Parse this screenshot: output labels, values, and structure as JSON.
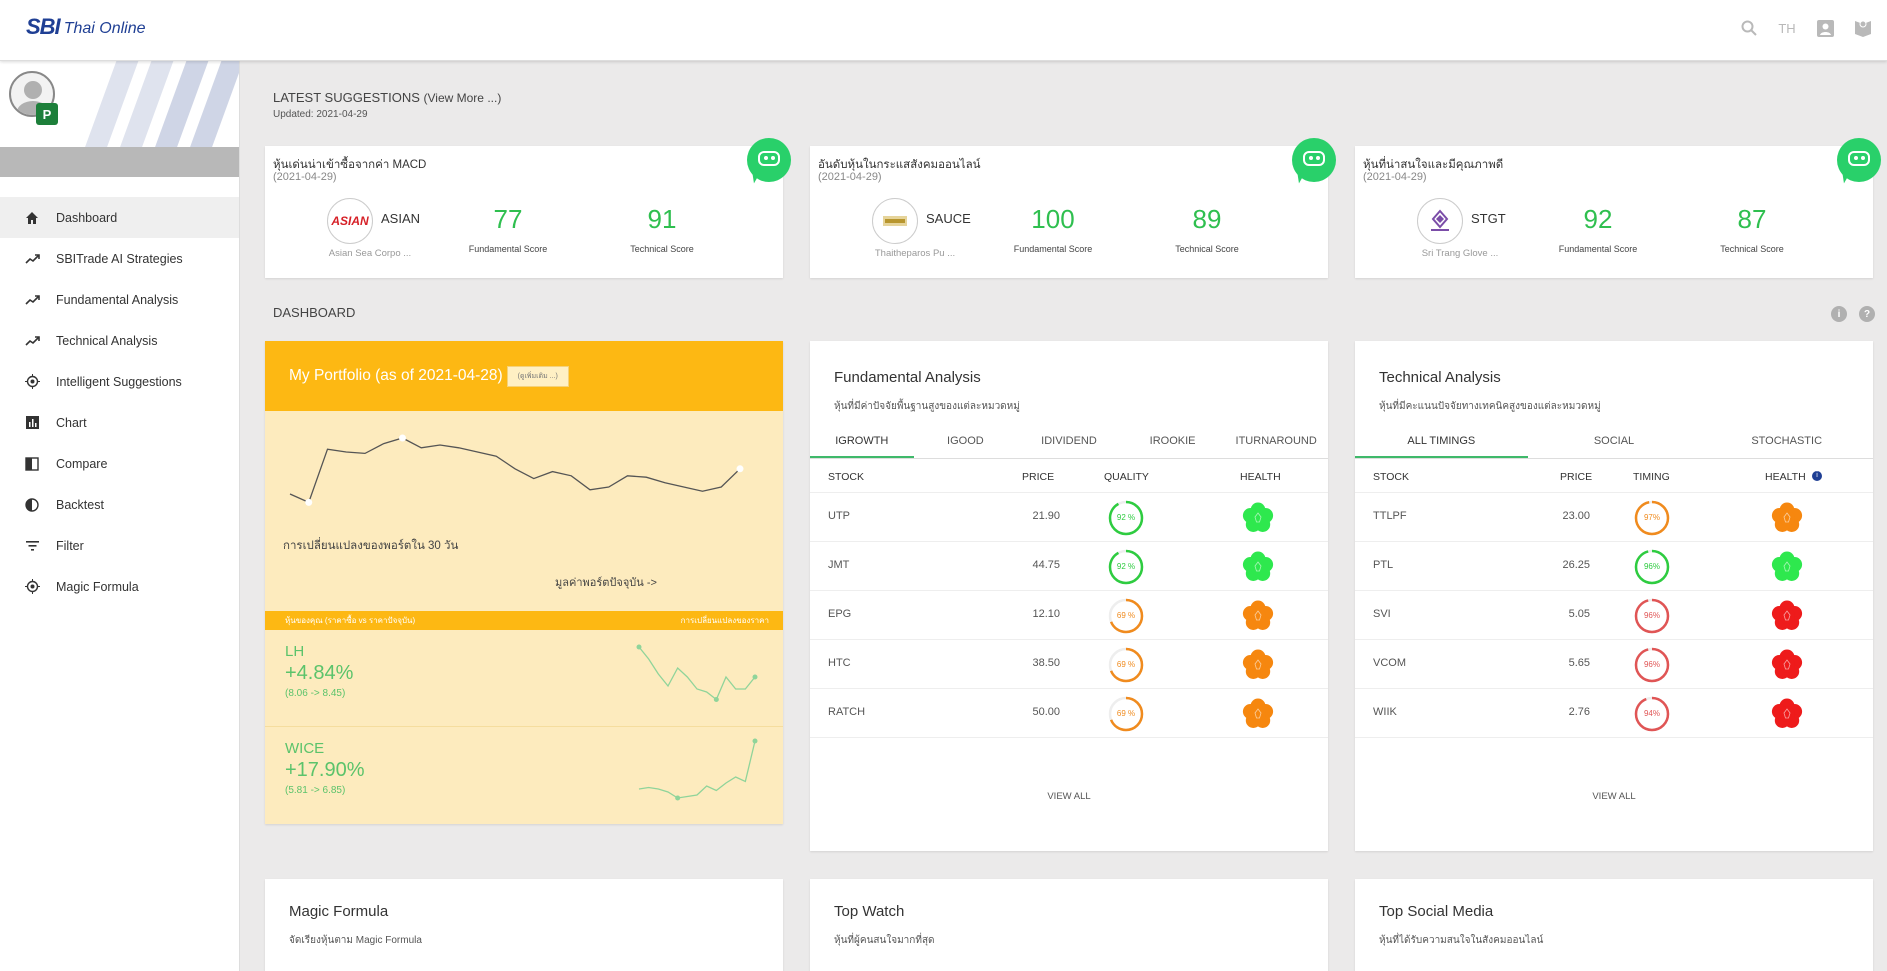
{
  "header": {
    "logo_sbi": "SBI",
    "logo_online": "Thai Online",
    "lang": "TH"
  },
  "sidebar": {
    "items": [
      {
        "label": "Dashboard",
        "icon": "home-icon"
      },
      {
        "label": "SBITrade AI Strategies",
        "icon": "trend-icon"
      },
      {
        "label": "Fundamental Analysis",
        "icon": "trend-icon"
      },
      {
        "label": "Technical Analysis",
        "icon": "trend-icon"
      },
      {
        "label": "Intelligent Suggestions",
        "icon": "target-icon"
      },
      {
        "label": "Chart",
        "icon": "bar-chart-icon"
      },
      {
        "label": "Compare",
        "icon": "compare-icon"
      },
      {
        "label": "Backtest",
        "icon": "backtest-icon"
      },
      {
        "label": "Filter",
        "icon": "filter-icon"
      },
      {
        "label": "Magic Formula",
        "icon": "target-icon"
      }
    ]
  },
  "latest": {
    "title": "LATEST SUGGESTIONS",
    "more": "(View More ...)",
    "updated": "Updated: 2021-04-29"
  },
  "suggestions": [
    {
      "title": "หุ้นเด่นน่าเข้าซื้อจากค่า MACD",
      "date": "(2021-04-29)",
      "symbol": "ASIAN",
      "name": "Asian Sea Corpo ...",
      "fundamental": "77",
      "technical": "91",
      "fund_label": "Fundamental Score",
      "tech_label": "Technical Score"
    },
    {
      "title": "อันดับหุ้นในกระแสสังคมออนไลน์",
      "date": "(2021-04-29)",
      "symbol": "SAUCE",
      "name": "Thaitheparos Pu ...",
      "fundamental": "100",
      "technical": "89",
      "fund_label": "Fundamental Score",
      "tech_label": "Technical Score"
    },
    {
      "title": "หุ้นที่น่าสนใจและมีคุณภาพดี",
      "date": "(2021-04-29)",
      "symbol": "STGT",
      "name": "Sri Trang Glove ...",
      "fundamental": "92",
      "technical": "87",
      "fund_label": "Fundamental Score",
      "tech_label": "Technical Score"
    }
  ],
  "dashboard": {
    "title": "DASHBOARD"
  },
  "portfolio": {
    "title": "My Portfolio (as of 2021-04-28)",
    "button": "(ดูเพิ่มเติม ...)",
    "change_30d": "การเปลี่ยนแปลงของพอร์ตใน 30 วัน",
    "current_value": "มูลค่าพอร์ตปัจจุบัน ->",
    "band_left": "หุ้นของคุณ (ราคาซื้อ vs ราคาปัจจุบัน)",
    "band_right": "การเปลี่ยนแปลงของราคา",
    "trend": [
      40,
      46,
      8,
      10,
      11,
      4,
      0,
      7,
      5,
      7,
      10,
      13,
      22,
      29,
      24,
      27,
      37,
      35,
      27,
      28,
      32,
      35,
      38,
      35,
      22
    ],
    "holdings": [
      {
        "symbol": "LH",
        "pct": "+4.84%",
        "range": "(8.06 -> 8.45)",
        "spark": [
          38,
          30,
          20,
          12,
          24,
          18,
          10,
          8,
          3,
          18,
          10,
          10,
          18
        ]
      },
      {
        "symbol": "WICE",
        "pct": "+17.90%",
        "range": "(5.81 -> 6.85)",
        "spark": [
          8,
          9,
          8,
          6,
          2,
          3,
          4,
          10,
          7,
          12,
          16,
          13,
          40
        ]
      }
    ],
    "colors": {
      "head": "#fdb813",
      "body": "#fdebbe",
      "up": "#5bc36b"
    }
  },
  "fundamental": {
    "title": "Fundamental Analysis",
    "subtitle": "หุ้นที่มีค่าปัจจัยพื้นฐานสูงของแต่ละหมวดหมู่",
    "tabs": [
      "IGROWTH",
      "IGOOD",
      "IDIVIDEND",
      "IROOKIE",
      "ITURNAROUND"
    ],
    "headers": [
      "STOCK",
      "PRICE",
      "QUALITY",
      "HEALTH"
    ],
    "rows": [
      {
        "stock": "UTP",
        "price": "21.90",
        "score": "92 %",
        "pct": 92,
        "ring": "#2ecc40",
        "health": "#2ee84e"
      },
      {
        "stock": "JMT",
        "price": "44.75",
        "score": "92 %",
        "pct": 92,
        "ring": "#2ecc40",
        "health": "#2ee84e"
      },
      {
        "stock": "EPG",
        "price": "12.10",
        "score": "69 %",
        "pct": 69,
        "ring": "#f08b1e",
        "health": "#f6870f"
      },
      {
        "stock": "HTC",
        "price": "38.50",
        "score": "69 %",
        "pct": 69,
        "ring": "#f08b1e",
        "health": "#f6870f"
      },
      {
        "stock": "RATCH",
        "price": "50.00",
        "score": "69 %",
        "pct": 69,
        "ring": "#f08b1e",
        "health": "#f6870f"
      }
    ],
    "view_all": "VIEW ALL"
  },
  "technical": {
    "title": "Technical Analysis",
    "subtitle": "หุ้นที่มีคะแนนปัจจัยทางเทคนิคสูงของแต่ละหมวดหมู่",
    "tabs": [
      "ALL TIMINGS",
      "SOCIAL",
      "STOCHASTIC"
    ],
    "headers": [
      "STOCK",
      "PRICE",
      "TIMING",
      "HEALTH"
    ],
    "rows": [
      {
        "stock": "TTLPF",
        "price": "23.00",
        "score": "97%",
        "pct": 97,
        "ring": "#f08b1e",
        "health": "#f6870f"
      },
      {
        "stock": "PTL",
        "price": "26.25",
        "score": "96%",
        "pct": 96,
        "ring": "#2ecc40",
        "health": "#2ee84e"
      },
      {
        "stock": "SVI",
        "price": "5.05",
        "score": "96%",
        "pct": 96,
        "ring": "#e05555",
        "health": "#ee1b1b"
      },
      {
        "stock": "VCOM",
        "price": "5.65",
        "score": "96%",
        "pct": 96,
        "ring": "#e05555",
        "health": "#ee1b1b"
      },
      {
        "stock": "WIIK",
        "price": "2.76",
        "score": "94%",
        "pct": 94,
        "ring": "#e05555",
        "health": "#ee1b1b"
      }
    ],
    "view_all": "VIEW ALL"
  },
  "bottom": [
    {
      "title": "Magic Formula",
      "subtitle": "จัดเรียงหุ้นตาม Magic Formula"
    },
    {
      "title": "Top Watch",
      "subtitle": "หุ้นที่ผู้คนสนใจมากที่สุด"
    },
    {
      "title": "Top Social Media",
      "subtitle": "หุ้นที่ได้รับความสนใจในสังคมออนไลน์"
    }
  ]
}
